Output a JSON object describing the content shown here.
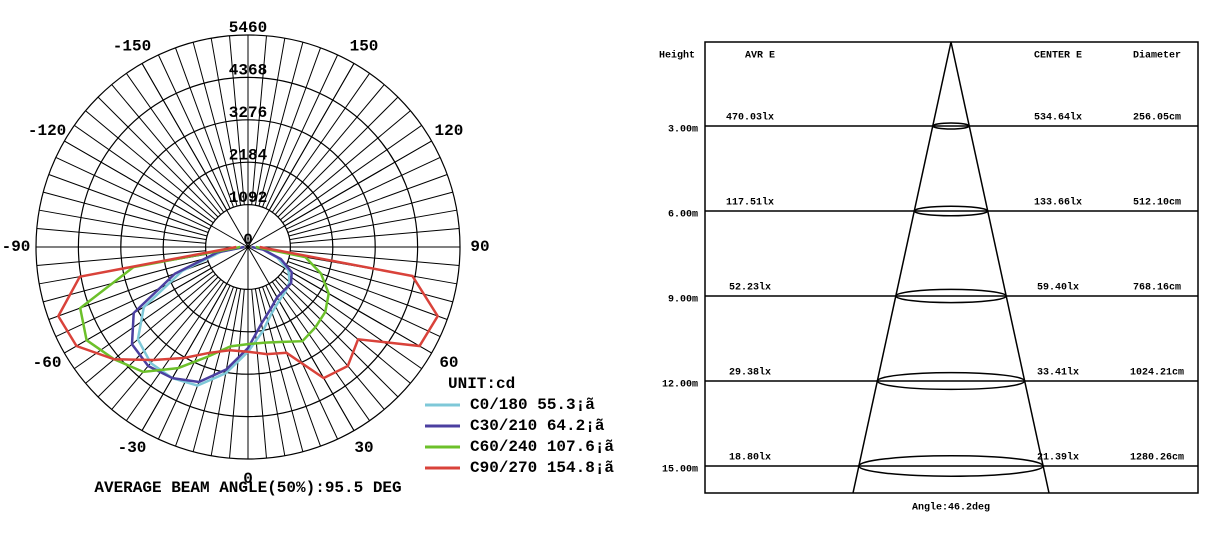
{
  "chart_data": [
    {
      "type": "polar",
      "unit_label": "UNIT:cd",
      "note": "AVERAGE BEAM ANGLE(50%):95.5 DEG",
      "rlim": [
        0,
        5460
      ],
      "rticks": [
        0,
        1092,
        2184,
        3276,
        4368,
        5460
      ],
      "angle_ticks": [
        -150,
        -120,
        -90,
        -60,
        -30,
        0,
        30,
        60,
        90,
        120,
        150
      ],
      "x": [
        -90,
        -80,
        -70,
        -60,
        -50,
        -40,
        -30,
        -20,
        -10,
        0,
        10,
        20,
        30,
        40,
        50,
        60,
        70,
        80,
        90
      ],
      "series": [
        {
          "name": "C0/180 55.3¡ã",
          "color": "#7ec8d8",
          "values": [
            100,
            700,
            1800,
            3100,
            3700,
            3900,
            3900,
            3800,
            3300,
            2700,
            2200,
            1800,
            1600,
            1500,
            1400,
            1200,
            800,
            400,
            100
          ]
        },
        {
          "name": "C30/210 64.2¡ã",
          "color": "#4b3fa0",
          "values": [
            100,
            800,
            2000,
            3400,
            3900,
            4000,
            3900,
            3700,
            3200,
            2600,
            2000,
            1700,
            1500,
            1450,
            1450,
            1300,
            900,
            400,
            100
          ]
        },
        {
          "name": "C60/240 107.6¡ã",
          "color": "#6cc02a",
          "values": [
            200,
            3000,
            4600,
            4800,
            4500,
            4200,
            3600,
            3000,
            2600,
            2500,
            2500,
            2600,
            2800,
            2700,
            2600,
            2400,
            2000,
            1500,
            200
          ]
        },
        {
          "name": "C90/270 154.8¡ã",
          "color": "#d9423a",
          "values": [
            300,
            4400,
            5200,
            5100,
            4500,
            3800,
            3300,
            2900,
            2700,
            2700,
            2800,
            2900,
            3900,
            4000,
            3700,
            5100,
            5200,
            4300,
            300
          ]
        }
      ]
    },
    {
      "type": "cone",
      "column_headers": [
        "Height",
        "AVR E",
        "CENTER E",
        "Diameter"
      ],
      "rows": [
        [
          "3.00m",
          "470.03lx",
          "534.64lx",
          "256.05cm"
        ],
        [
          "6.00m",
          "117.51lx",
          "133.66lx",
          "512.10cm"
        ],
        [
          "9.00m",
          "52.23lx",
          "59.40lx",
          "768.16cm"
        ],
        [
          "12.00m",
          "29.38lx",
          "33.41lx",
          "1024.21cm"
        ],
        [
          "15.00m",
          "18.80lx",
          "21.39lx",
          "1280.26cm"
        ]
      ],
      "footer": "Angle:46.2deg"
    }
  ]
}
